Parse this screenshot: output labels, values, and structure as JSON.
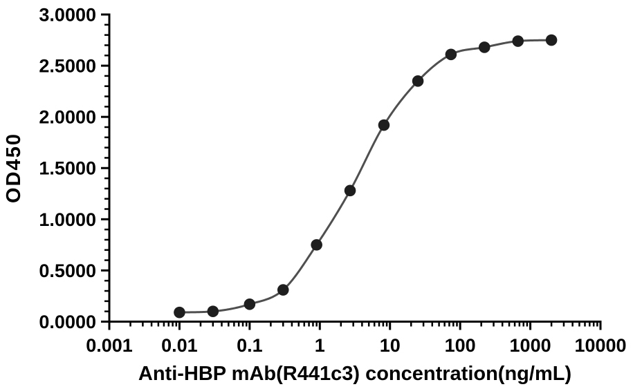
{
  "page": {
    "background": "#ffffff"
  },
  "chart_data": {
    "type": "scatter",
    "title": "",
    "xlabel": "Anti-HBP mAb(R441c3) concentration(ng/mL)",
    "ylabel": "OD450",
    "x_scale": "log10",
    "xlim": [
      0.001,
      10000
    ],
    "ylim": [
      0.0,
      3.0
    ],
    "grid": false,
    "legend": false,
    "x_ticks": {
      "values": [
        0.001,
        0.01,
        0.1,
        1,
        10,
        100,
        1000,
        10000
      ],
      "labels": [
        "0.001",
        "0.01",
        "0.1",
        "1",
        "10",
        "100",
        "1000",
        "10000"
      ],
      "minor_multipliers": [
        2,
        3,
        4,
        5,
        6,
        7,
        8,
        9
      ]
    },
    "y_ticks": {
      "values": [
        0.0,
        0.5,
        1.0,
        1.5,
        2.0,
        2.5,
        3.0
      ],
      "labels": [
        "0.0000",
        "0.5000",
        "1.0000",
        "1.5000",
        "2.0000",
        "2.5000",
        "3.0000"
      ],
      "minor_step": 0.1
    },
    "series": [
      {
        "marker": "circle",
        "marker_color": "#1e1e1e",
        "line_color": "#4f4f4f",
        "x": [
          0.01,
          0.03,
          0.1,
          0.3,
          0.9,
          2.7,
          8.2,
          25,
          74,
          222,
          667,
          2000
        ],
        "y": [
          0.09,
          0.1,
          0.17,
          0.31,
          0.75,
          1.28,
          1.92,
          2.35,
          2.61,
          2.68,
          2.74,
          2.75
        ]
      }
    ],
    "axis_color": "#000000"
  }
}
